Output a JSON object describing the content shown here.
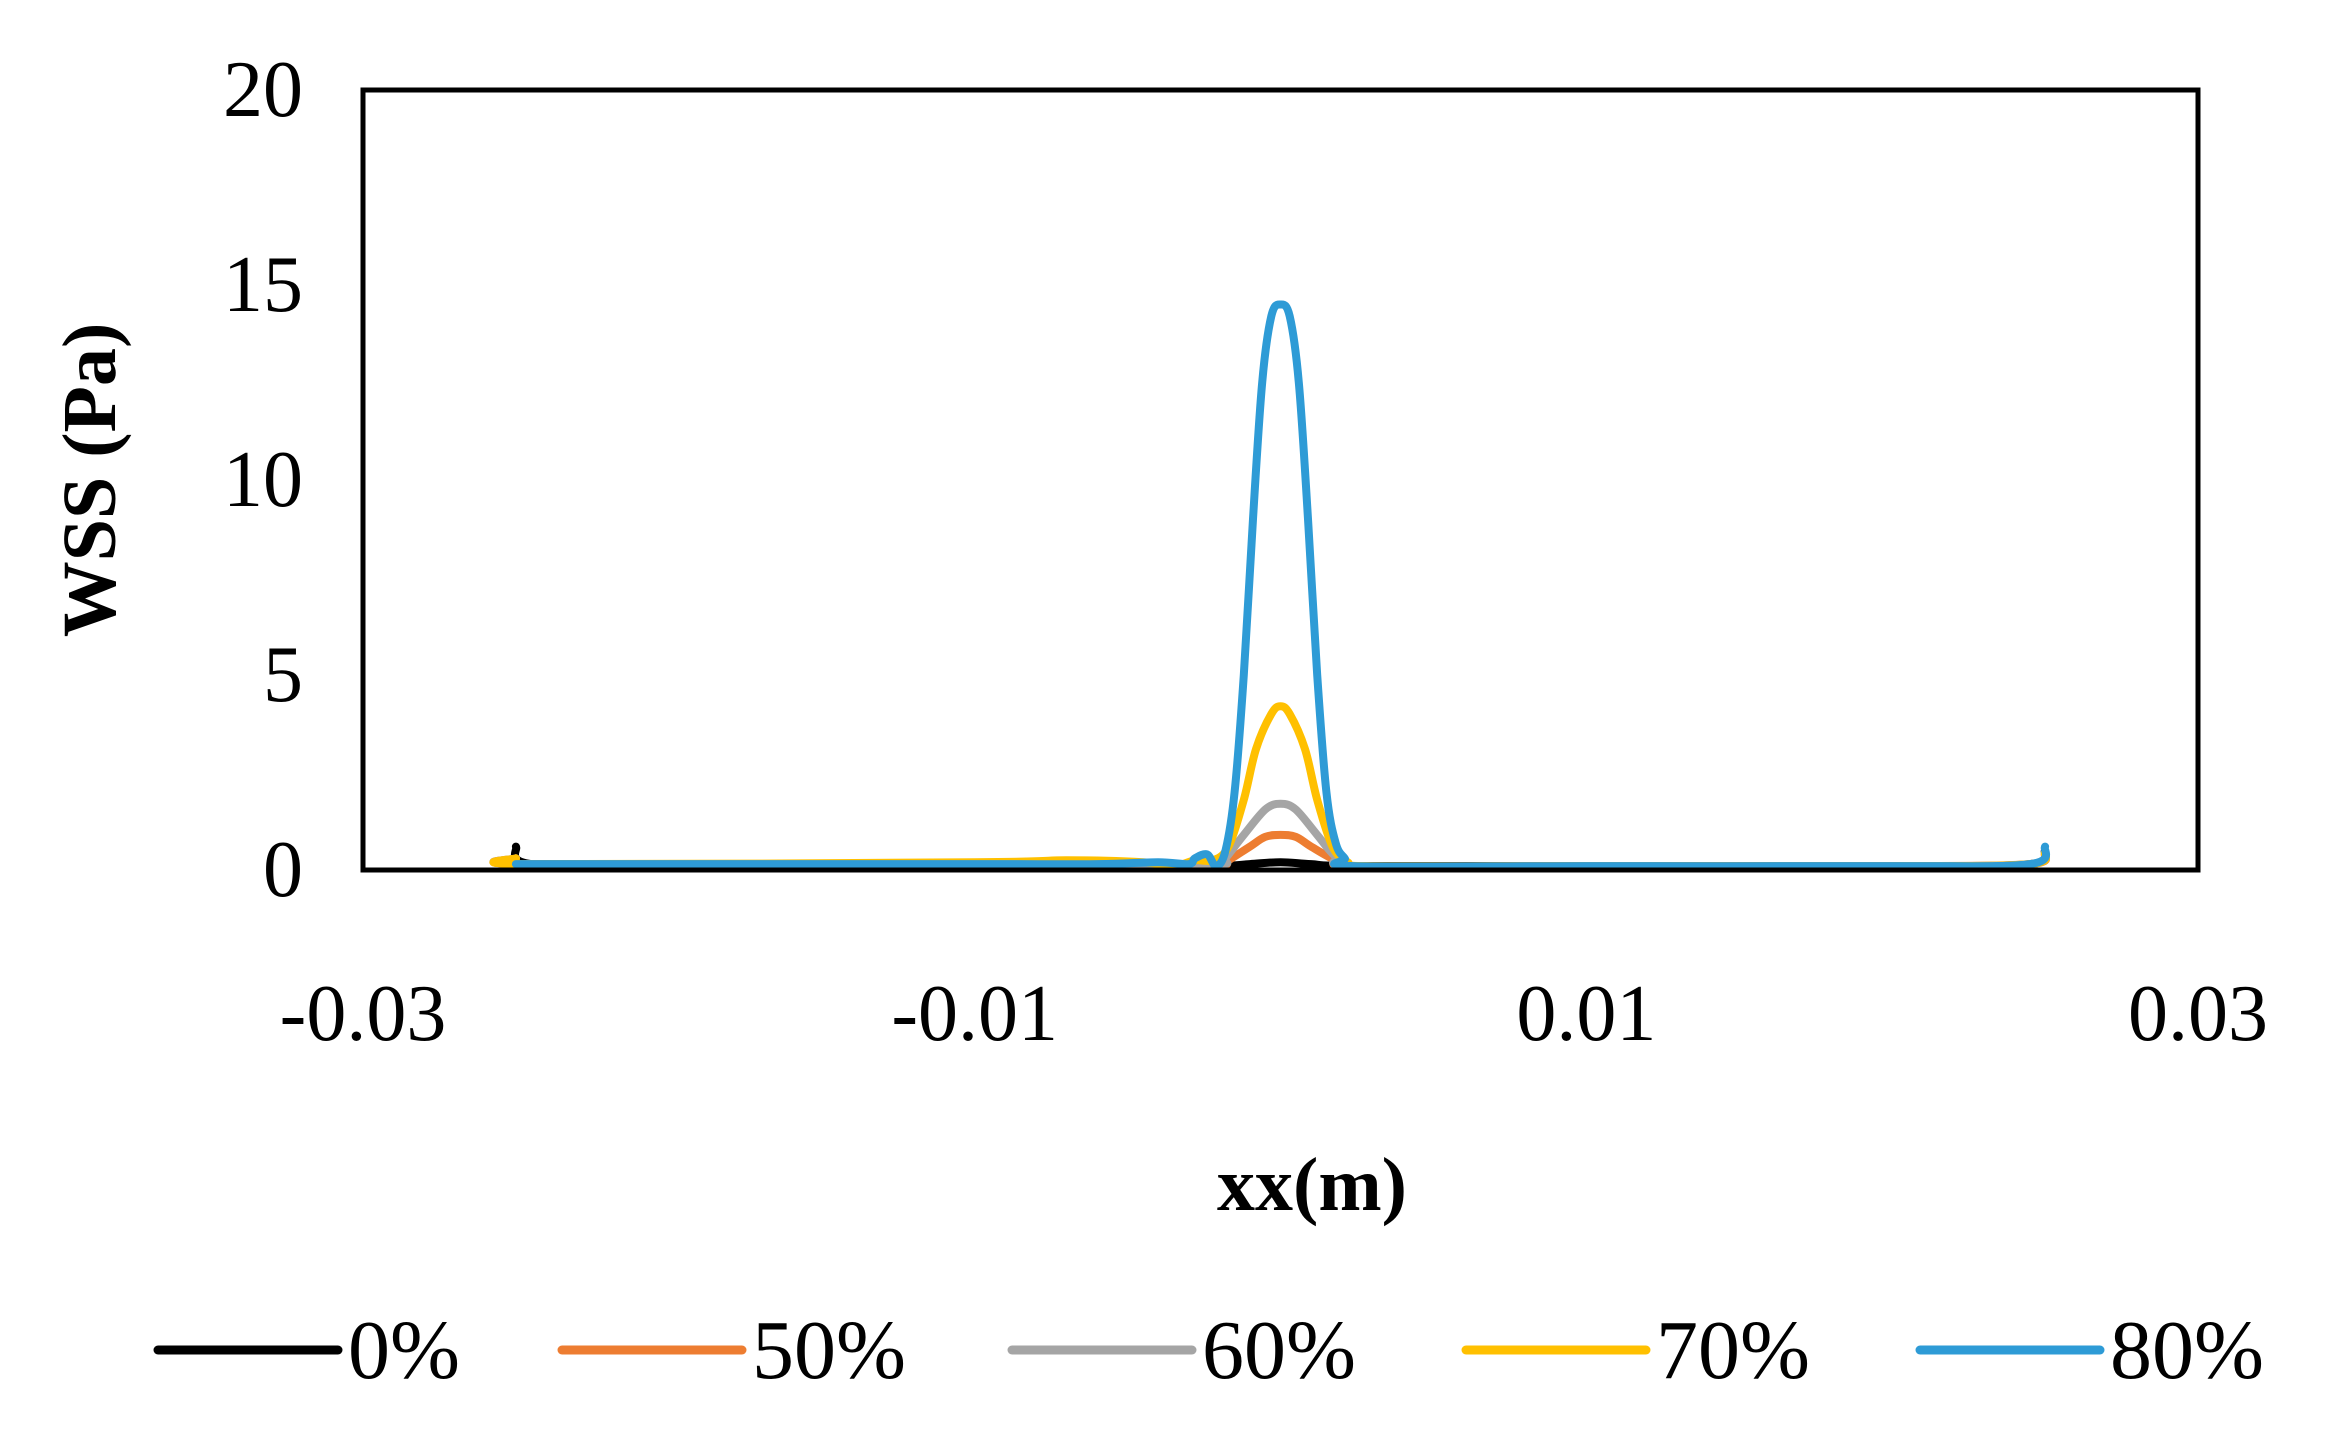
{
  "chart_data": {
    "type": "line",
    "title": "",
    "xlabel": "xx(m)",
    "ylabel": "WSS (Pa)",
    "xlim": [
      -0.03,
      0.03
    ],
    "ylim": [
      0,
      20
    ],
    "x_ticks": [
      "-0.03",
      "-0.01",
      "0.01",
      "0.03"
    ],
    "y_ticks": [
      "0",
      "5",
      "10",
      "15",
      "20"
    ],
    "grid": false,
    "legend_position": "bottom",
    "series": [
      {
        "name": "0%",
        "color": "#000000",
        "points": [
          [
            -0.025,
            0.6
          ],
          [
            -0.0245,
            0.15
          ],
          [
            -0.02,
            0.1
          ],
          [
            -0.01,
            0.1
          ],
          [
            -0.004,
            0.1
          ],
          [
            -0.002,
            0.1
          ],
          [
            -0.001,
            0.15
          ],
          [
            0,
            0.2
          ],
          [
            0.001,
            0.15
          ],
          [
            0.0025,
            0.1
          ],
          [
            0.01,
            0.1
          ],
          [
            0.02,
            0.1
          ],
          [
            0.0245,
            0.15
          ],
          [
            0.025,
            0.5
          ]
        ]
      },
      {
        "name": "50%",
        "color": "#ED7D31",
        "points": [
          [
            -0.025,
            0.3
          ],
          [
            -0.0245,
            0.15
          ],
          [
            -0.01,
            0.15
          ],
          [
            -0.005,
            0.15
          ],
          [
            -0.002,
            0.15
          ],
          [
            -0.0018,
            0.2
          ],
          [
            -0.001,
            0.6
          ],
          [
            -0.0005,
            0.85
          ],
          [
            0,
            0.9
          ],
          [
            0.0005,
            0.85
          ],
          [
            0.001,
            0.6
          ],
          [
            0.0018,
            0.25
          ],
          [
            0.0025,
            0.1
          ],
          [
            0.01,
            0.1
          ],
          [
            0.02,
            0.1
          ],
          [
            0.0245,
            0.15
          ],
          [
            0.025,
            0.4
          ]
        ]
      },
      {
        "name": "60%",
        "color": "#A5A5A5",
        "points": [
          [
            -0.025,
            0.3
          ],
          [
            -0.0245,
            0.15
          ],
          [
            -0.01,
            0.15
          ],
          [
            -0.005,
            0.15
          ],
          [
            -0.002,
            0.15
          ],
          [
            -0.0018,
            0.3
          ],
          [
            -0.0012,
            0.9
          ],
          [
            -0.0005,
            1.55
          ],
          [
            0,
            1.7
          ],
          [
            0.0005,
            1.55
          ],
          [
            0.0012,
            0.9
          ],
          [
            0.0018,
            0.35
          ],
          [
            0.0025,
            0.1
          ],
          [
            0.01,
            0.1
          ],
          [
            0.02,
            0.1
          ],
          [
            0.0245,
            0.15
          ],
          [
            0.025,
            0.45
          ]
        ]
      },
      {
        "name": "70%",
        "color": "#FFC000",
        "points": [
          [
            -0.025,
            0.3
          ],
          [
            -0.0245,
            0.15
          ],
          [
            -0.01,
            0.2
          ],
          [
            -0.007,
            0.25
          ],
          [
            -0.0045,
            0.2
          ],
          [
            -0.0035,
            0.1
          ],
          [
            -0.0028,
            0.25
          ],
          [
            -0.0022,
            0.25
          ],
          [
            -0.0017,
            0.6
          ],
          [
            -0.0012,
            1.8
          ],
          [
            -0.0008,
            3.1
          ],
          [
            -0.0003,
            4.0
          ],
          [
            0,
            4.2
          ],
          [
            0.0003,
            4.0
          ],
          [
            0.0008,
            3.1
          ],
          [
            0.0012,
            1.8
          ],
          [
            0.0017,
            0.6
          ],
          [
            0.0022,
            0.2
          ],
          [
            0.0028,
            0.1
          ],
          [
            0.01,
            0.1
          ],
          [
            0.02,
            0.1
          ],
          [
            0.0245,
            0.15
          ],
          [
            0.025,
            0.45
          ]
        ]
      },
      {
        "name": "80%",
        "color": "#2E9BD6",
        "points": [
          [
            -0.025,
            0.15
          ],
          [
            -0.02,
            0.15
          ],
          [
            -0.01,
            0.15
          ],
          [
            -0.006,
            0.15
          ],
          [
            -0.004,
            0.2
          ],
          [
            -0.003,
            0.15
          ],
          [
            -0.0028,
            0.3
          ],
          [
            -0.0024,
            0.4
          ],
          [
            -0.0021,
            0.1
          ],
          [
            -0.0018,
            0.5
          ],
          [
            -0.0015,
            2.0
          ],
          [
            -0.0012,
            5.0
          ],
          [
            -0.0009,
            9.0
          ],
          [
            -0.0006,
            12.5
          ],
          [
            -0.0003,
            14.2
          ],
          [
            0,
            14.5
          ],
          [
            0.0003,
            14.2
          ],
          [
            0.0006,
            12.5
          ],
          [
            0.0009,
            9.0
          ],
          [
            0.0012,
            5.0
          ],
          [
            0.0015,
            2.0
          ],
          [
            0.0018,
            0.7
          ],
          [
            0.0021,
            0.3
          ],
          [
            0.0024,
            0.1
          ],
          [
            0.01,
            0.1
          ],
          [
            0.02,
            0.1
          ],
          [
            0.0245,
            0.15
          ],
          [
            0.025,
            0.6
          ]
        ]
      }
    ]
  }
}
